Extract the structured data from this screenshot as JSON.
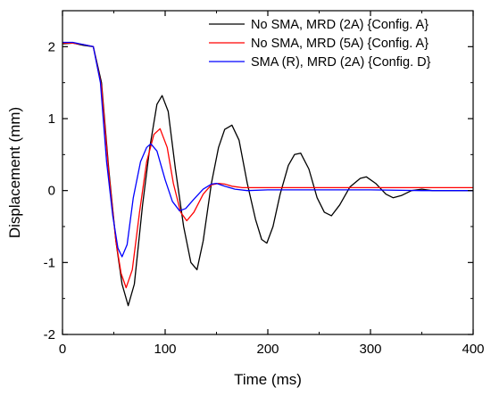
{
  "chart_data": {
    "type": "line",
    "title": "",
    "xlabel": "Time (ms)",
    "ylabel": "Displacement (mm)",
    "xlim": [
      0,
      400
    ],
    "ylim": [
      -2,
      2.5
    ],
    "x_ticks": [
      0,
      100,
      200,
      300,
      400
    ],
    "x_tick_labels": [
      "0",
      "100",
      "200",
      "300",
      "400"
    ],
    "y_ticks": [
      -2,
      -1,
      0,
      1,
      2
    ],
    "y_tick_labels": [
      "-2",
      "-1",
      "0",
      "1",
      "2"
    ],
    "grid": false,
    "legend_position": "top-right",
    "series": [
      {
        "name": "No SMA, MRD (2A) {Config. A}",
        "color": "#000000",
        "points": [
          [
            0,
            2.04
          ],
          [
            10,
            2.05
          ],
          [
            20,
            2.02
          ],
          [
            30,
            2.0
          ],
          [
            38,
            1.5
          ],
          [
            45,
            0.3
          ],
          [
            52,
            -0.7
          ],
          [
            58,
            -1.3
          ],
          [
            64,
            -1.6
          ],
          [
            70,
            -1.3
          ],
          [
            78,
            -0.2
          ],
          [
            85,
            0.6
          ],
          [
            92,
            1.2
          ],
          [
            97,
            1.32
          ],
          [
            103,
            1.1
          ],
          [
            110,
            0.3
          ],
          [
            118,
            -0.5
          ],
          [
            125,
            -1.0
          ],
          [
            131,
            -1.1
          ],
          [
            137,
            -0.7
          ],
          [
            145,
            0.1
          ],
          [
            152,
            0.6
          ],
          [
            158,
            0.85
          ],
          [
            165,
            0.91
          ],
          [
            172,
            0.7
          ],
          [
            180,
            0.1
          ],
          [
            188,
            -0.4
          ],
          [
            194,
            -0.68
          ],
          [
            199,
            -0.73
          ],
          [
            205,
            -0.5
          ],
          [
            212,
            -0.05
          ],
          [
            220,
            0.35
          ],
          [
            226,
            0.5
          ],
          [
            232,
            0.52
          ],
          [
            240,
            0.3
          ],
          [
            248,
            -0.1
          ],
          [
            255,
            -0.3
          ],
          [
            262,
            -0.35
          ],
          [
            270,
            -0.2
          ],
          [
            280,
            0.05
          ],
          [
            290,
            0.17
          ],
          [
            296,
            0.19
          ],
          [
            305,
            0.1
          ],
          [
            315,
            -0.05
          ],
          [
            322,
            -0.1
          ],
          [
            330,
            -0.07
          ],
          [
            340,
            0.0
          ],
          [
            350,
            0.02
          ],
          [
            360,
            0.0
          ],
          [
            380,
            0.0
          ],
          [
            400,
            0.0
          ]
        ]
      },
      {
        "name": "No SMA, MRD (5A) {Config. A}",
        "color": "#ff0000",
        "points": [
          [
            0,
            2.05
          ],
          [
            10,
            2.05
          ],
          [
            20,
            2.03
          ],
          [
            30,
            2.0
          ],
          [
            38,
            1.45
          ],
          [
            45,
            0.25
          ],
          [
            52,
            -0.7
          ],
          [
            57,
            -1.15
          ],
          [
            62,
            -1.35
          ],
          [
            68,
            -1.1
          ],
          [
            75,
            -0.3
          ],
          [
            82,
            0.4
          ],
          [
            89,
            0.78
          ],
          [
            95,
            0.86
          ],
          [
            102,
            0.6
          ],
          [
            108,
            0.1
          ],
          [
            115,
            -0.3
          ],
          [
            121,
            -0.42
          ],
          [
            128,
            -0.3
          ],
          [
            137,
            -0.05
          ],
          [
            145,
            0.08
          ],
          [
            152,
            0.1
          ],
          [
            158,
            0.09
          ],
          [
            165,
            0.06
          ],
          [
            175,
            0.04
          ],
          [
            190,
            0.04
          ],
          [
            220,
            0.04
          ],
          [
            260,
            0.04
          ],
          [
            300,
            0.04
          ],
          [
            350,
            0.04
          ],
          [
            400,
            0.04
          ]
        ]
      },
      {
        "name": "SMA (R), MRD (2A) {Config. D}",
        "color": "#0000ff",
        "points": [
          [
            0,
            2.06
          ],
          [
            10,
            2.06
          ],
          [
            20,
            2.03
          ],
          [
            30,
            2.0
          ],
          [
            37,
            1.5
          ],
          [
            43,
            0.4
          ],
          [
            49,
            -0.35
          ],
          [
            54,
            -0.8
          ],
          [
            58,
            -0.92
          ],
          [
            63,
            -0.75
          ],
          [
            69,
            -0.1
          ],
          [
            76,
            0.4
          ],
          [
            82,
            0.6
          ],
          [
            86,
            0.65
          ],
          [
            92,
            0.55
          ],
          [
            100,
            0.15
          ],
          [
            107,
            -0.15
          ],
          [
            114,
            -0.28
          ],
          [
            120,
            -0.25
          ],
          [
            128,
            -0.12
          ],
          [
            137,
            0.02
          ],
          [
            145,
            0.09
          ],
          [
            150,
            0.1
          ],
          [
            158,
            0.06
          ],
          [
            168,
            0.02
          ],
          [
            180,
            0.0
          ],
          [
            200,
            0.01
          ],
          [
            250,
            0.01
          ],
          [
            300,
            0.01
          ],
          [
            350,
            0.0
          ],
          [
            400,
            0.0
          ]
        ]
      }
    ]
  }
}
